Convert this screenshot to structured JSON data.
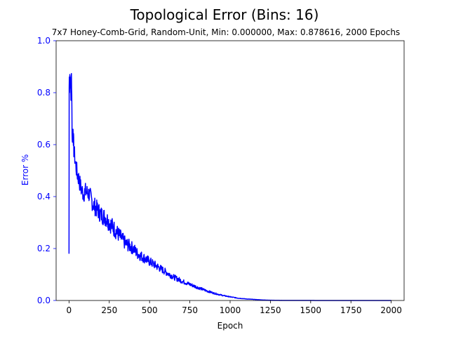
{
  "chart_data": {
    "type": "line",
    "title": "Topological Error (Bins: 16)",
    "subtitle": "7x7 Honey-Comb-Grid, Random-Unit, Min: 0.000000, Max: 0.878616, 2000 Epochs",
    "xlabel": "Epoch",
    "ylabel": "Error %",
    "xlim": [
      -80,
      2080
    ],
    "ylim": [
      0,
      1.0
    ],
    "xticks": [
      "0",
      "250",
      "500",
      "750",
      "1000",
      "1250",
      "1500",
      "1750",
      "2000"
    ],
    "yticks": [
      "0.0",
      "0.2",
      "0.4",
      "0.6",
      "0.8",
      "1.0"
    ],
    "grid": false,
    "line_color": "#0000ff",
    "series": [
      {
        "x": [
          0,
          1,
          2,
          3,
          5,
          8,
          12,
          15,
          20,
          25,
          30,
          40,
          50,
          60,
          75,
          90,
          100,
          125,
          150,
          175,
          200,
          225,
          250,
          275,
          300,
          325,
          350,
          375,
          400,
          425,
          450,
          475,
          500,
          550,
          600,
          650,
          700,
          750,
          800,
          850,
          900,
          950,
          1000,
          1050,
          1100,
          1150,
          1200,
          1250,
          1300,
          1400,
          1500,
          1600,
          1750,
          1900,
          2000
        ],
        "y": [
          0.18,
          0.82,
          0.86,
          0.8,
          0.87,
          0.85,
          0.8,
          0.88,
          0.62,
          0.66,
          0.58,
          0.53,
          0.49,
          0.47,
          0.43,
          0.41,
          0.42,
          0.41,
          0.37,
          0.35,
          0.33,
          0.32,
          0.3,
          0.28,
          0.26,
          0.24,
          0.22,
          0.21,
          0.2,
          0.18,
          0.17,
          0.16,
          0.15,
          0.13,
          0.11,
          0.09,
          0.075,
          0.062,
          0.05,
          0.038,
          0.028,
          0.02,
          0.014,
          0.009,
          0.006,
          0.004,
          0.002,
          0.001,
          0.0005,
          0.0003,
          0.0002,
          0.0001,
          0.0,
          0.0,
          0.0
        ]
      }
    ]
  }
}
